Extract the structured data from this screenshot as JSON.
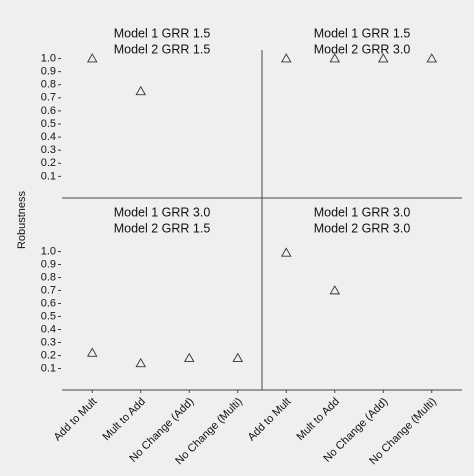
{
  "ylabel": "Robustness",
  "categories": [
    "Add to Mult",
    "Mult to Add",
    "No Change (Add)",
    "No Change (Multi)"
  ],
  "ylim": [
    -0.05,
    1.05
  ],
  "yticks": [
    0.1,
    0.2,
    0.3,
    0.4,
    0.5,
    0.6,
    0.7,
    0.8,
    0.9,
    {
      "value": 1,
      "label": "1.0"
    }
  ],
  "chart_data": [
    {
      "type": "scatter",
      "title": "Model 1 GRR 1.5",
      "subtitle": "Model 2 GRR 1.5",
      "marker": "triangle",
      "color": "#333333",
      "values": [
        1.0,
        0.75,
        null,
        null
      ]
    },
    {
      "type": "scatter",
      "title": "Model 1 GRR 1.5",
      "subtitle": "Model 2 GRR 3.0",
      "marker": "triangle",
      "color": "#333333",
      "values": [
        1.0,
        1.0,
        1.0,
        1.0
      ]
    },
    {
      "type": "scatter",
      "title": "Model 1 GRR 3.0",
      "subtitle": "Model 2 GRR 1.5",
      "marker": "triangle",
      "color": "#333333",
      "values": [
        0.22,
        0.14,
        0.18,
        0.18
      ]
    },
    {
      "type": "scatter",
      "title": "Model 1 GRR 3.0",
      "subtitle": "Model 2 GRR 3.0",
      "marker": "triangle",
      "color": "#333333",
      "values": [
        0.99,
        0.7,
        null,
        null
      ]
    }
  ]
}
